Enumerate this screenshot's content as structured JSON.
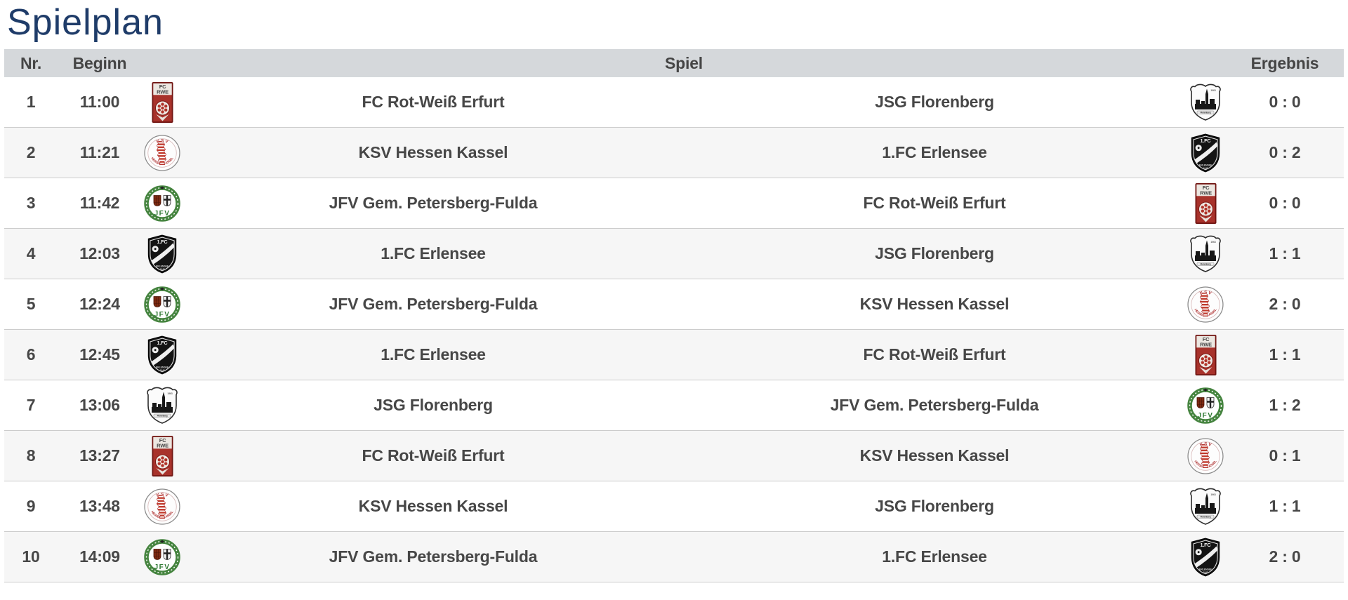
{
  "page_title": "Spielplan",
  "colors": {
    "title": "#1f3c69",
    "header_bg": "#d5d8db",
    "header_text": "#454545",
    "row_text": "#474747",
    "row_alt_bg": "#f6f6f6",
    "row_border": "#cccccc"
  },
  "table": {
    "headers": {
      "nr": "Nr.",
      "beginn": "Beginn",
      "spiel": "Spiel",
      "ergebnis": "Ergebnis"
    },
    "teams": {
      "rwe": {
        "name": "FC Rot-Weiß Erfurt",
        "icon": "rwe-erfurt-crest-icon",
        "main_color": "#a8322b"
      },
      "ksv": {
        "name": "KSV Hessen Kassel",
        "icon": "ksv-hessen-kassel-crest-icon",
        "main_color": "#b23737"
      },
      "jfv": {
        "name": "JFV Gem. Petersberg-Fulda",
        "icon": "jfv-petersberg-fulda-crest-icon",
        "main_color": "#45843f"
      },
      "erlensee": {
        "name": "1.FC Erlensee",
        "icon": "fc-erlensee-crest-icon",
        "main_color": "#141414"
      },
      "jsg": {
        "name": "JSG Florenberg",
        "icon": "jsg-florenberg-crest-icon",
        "main_color": "#2d2d2d"
      }
    },
    "rows": [
      {
        "nr": "1",
        "time": "11:00",
        "home": "rwe",
        "away": "jsg",
        "result": "0 : 0"
      },
      {
        "nr": "2",
        "time": "11:21",
        "home": "ksv",
        "away": "erlensee",
        "result": "0 : 2"
      },
      {
        "nr": "3",
        "time": "11:42",
        "home": "jfv",
        "away": "rwe",
        "result": "0 : 0"
      },
      {
        "nr": "4",
        "time": "12:03",
        "home": "erlensee",
        "away": "jsg",
        "result": "1 : 1"
      },
      {
        "nr": "5",
        "time": "12:24",
        "home": "jfv",
        "away": "ksv",
        "result": "2 : 0"
      },
      {
        "nr": "6",
        "time": "12:45",
        "home": "erlensee",
        "away": "rwe",
        "result": "1 : 1"
      },
      {
        "nr": "7",
        "time": "13:06",
        "home": "jsg",
        "away": "jfv",
        "result": "1 : 2"
      },
      {
        "nr": "8",
        "time": "13:27",
        "home": "rwe",
        "away": "ksv",
        "result": "0 : 1"
      },
      {
        "nr": "9",
        "time": "13:48",
        "home": "ksv",
        "away": "jsg",
        "result": "1 : 1"
      },
      {
        "nr": "10",
        "time": "14:09",
        "home": "jfv",
        "away": "erlensee",
        "result": "2 : 0"
      }
    ]
  }
}
